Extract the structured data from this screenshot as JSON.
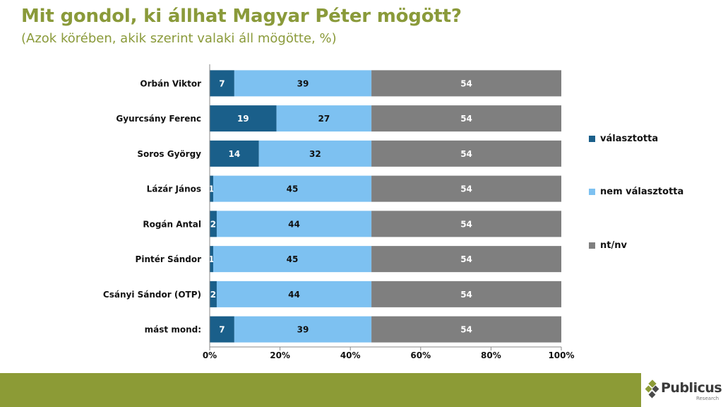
{
  "header": {
    "title": "Mit gondol, ki állhat Magyar Péter mögött?",
    "subtitle": "(Azok körében, akik szerint valaki áll mögötte, %)"
  },
  "chart_data": {
    "type": "bar",
    "orientation": "horizontal",
    "stacked": true,
    "percent_stacked": true,
    "categories": [
      "Orbán Viktor",
      "Gyurcsány Ferenc",
      "Soros György",
      "Lázár János",
      "Rogán Antal",
      "Pintér Sándor",
      "Csányi Sándor (OTP)",
      "mást mond:"
    ],
    "series": [
      {
        "name": "választotta",
        "color": "#1a5f8a",
        "values": [
          7,
          19,
          14,
          1,
          2,
          1,
          2,
          7
        ]
      },
      {
        "name": "nem választotta",
        "color": "#7dc1f1",
        "values": [
          39,
          27,
          32,
          45,
          44,
          45,
          44,
          39
        ]
      },
      {
        "name": "nt/nv",
        "color": "#7f7f7f",
        "values": [
          54,
          54,
          54,
          54,
          54,
          54,
          54,
          54
        ]
      }
    ],
    "xlim": [
      0,
      100
    ],
    "xticks": [
      "0%",
      "20%",
      "40%",
      "60%",
      "80%",
      "100%"
    ],
    "legend_position": "right",
    "grid": false
  },
  "brand": {
    "name": "Publicus",
    "sub": "Research",
    "accent": "#8c9b36"
  }
}
